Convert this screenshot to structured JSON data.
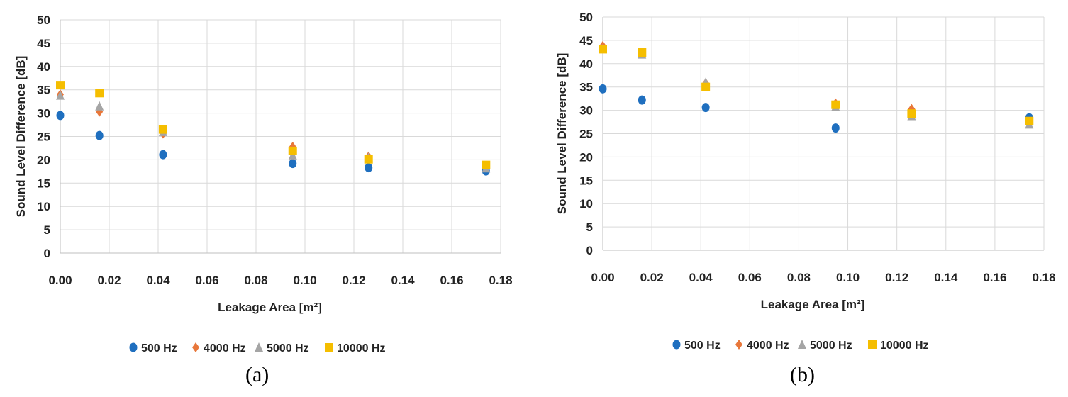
{
  "chart_data": [
    {
      "type": "scatter",
      "panel_label": "(a)",
      "xlabel": "Leakage Area [m²]",
      "ylabel": "Sound Level Difference [dB]",
      "xlim": [
        0,
        0.18
      ],
      "ylim": [
        0,
        50
      ],
      "xticks": [
        "0.00",
        "0.02",
        "0.04",
        "0.06",
        "0.08",
        "0.10",
        "0.12",
        "0.14",
        "0.16",
        "0.18"
      ],
      "yticks": [
        "0",
        "5",
        "10",
        "15",
        "20",
        "25",
        "30",
        "35",
        "40",
        "45",
        "50"
      ],
      "x": [
        0.0,
        0.016,
        0.042,
        0.095,
        0.126,
        0.174
      ],
      "grid": true,
      "legend_position": "bottom",
      "series": [
        {
          "name": "500 Hz",
          "marker": "circle",
          "color": "#1f6fbf",
          "values": [
            29.5,
            25.2,
            21.1,
            19.2,
            18.3,
            17.6
          ]
        },
        {
          "name": "4000 Hz",
          "marker": "diamond",
          "color": "#e8773a",
          "values": [
            34.0,
            30.3,
            25.6,
            22.8,
            20.7,
            18.7
          ]
        },
        {
          "name": "5000 Hz",
          "marker": "triangle",
          "color": "#a5a5a5",
          "values": [
            33.8,
            31.5,
            26.0,
            21.0,
            20.5,
            18.2
          ]
        },
        {
          "name": "10000 Hz",
          "marker": "square",
          "color": "#f5be00",
          "values": [
            36.0,
            34.3,
            26.5,
            21.9,
            20.1,
            18.9
          ]
        }
      ]
    },
    {
      "type": "scatter",
      "panel_label": "(b)",
      "xlabel": "Leakage Area [m²]",
      "ylabel": "Sound Level Difference [dB]",
      "xlim": [
        0,
        0.18
      ],
      "ylim": [
        0,
        50
      ],
      "xticks": [
        "0.00",
        "0.02",
        "0.04",
        "0.06",
        "0.08",
        "0.10",
        "0.12",
        "0.14",
        "0.16",
        "0.18"
      ],
      "yticks": [
        "0",
        "5",
        "10",
        "15",
        "20",
        "25",
        "30",
        "35",
        "40",
        "45",
        "50"
      ],
      "x": [
        0.0,
        0.016,
        0.042,
        0.095,
        0.126,
        0.174
      ],
      "grid": true,
      "legend_position": "bottom",
      "series": [
        {
          "name": "500 Hz",
          "marker": "circle",
          "color": "#1f6fbf",
          "values": [
            34.6,
            32.2,
            30.6,
            26.2,
            29.0,
            28.4
          ]
        },
        {
          "name": "4000 Hz",
          "marker": "diamond",
          "color": "#e8773a",
          "values": [
            43.8,
            42.2,
            35.8,
            31.5,
            30.3,
            27.4
          ]
        },
        {
          "name": "5000 Hz",
          "marker": "triangle",
          "color": "#a5a5a5",
          "values": [
            43.2,
            42.0,
            36.0,
            30.8,
            28.8,
            27.0
          ]
        },
        {
          "name": "10000 Hz",
          "marker": "square",
          "color": "#f5be00",
          "values": [
            43.1,
            42.4,
            35.0,
            31.2,
            29.3,
            27.7
          ]
        }
      ]
    }
  ]
}
